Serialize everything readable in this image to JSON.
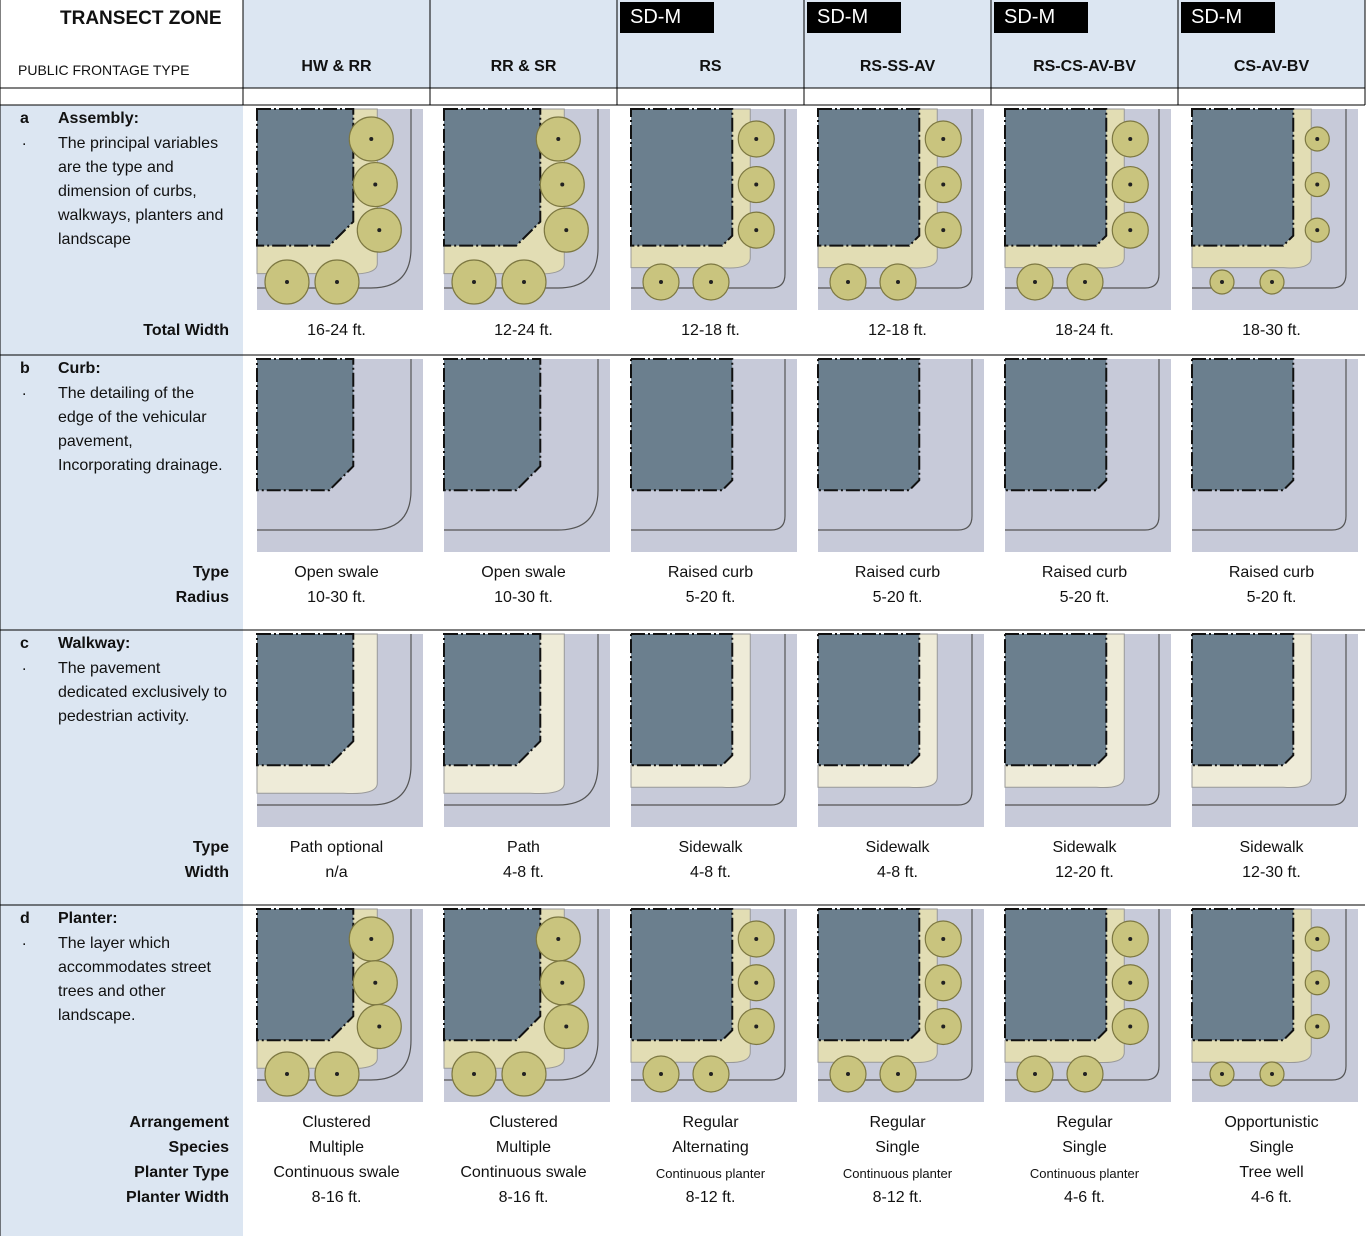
{
  "header": {
    "transect_zone": "TRANSECT ZONE",
    "frontage_type": "PUBLIC FRONTAGE TYPE",
    "columns": [
      {
        "type": "HW & RR"
      },
      {
        "type": "RR & SR"
      },
      {
        "zone": "SD-M",
        "type": "RS"
      },
      {
        "zone": "SD-M",
        "type": "RS-SS-AV"
      },
      {
        "zone": "SD-M",
        "type": "RS-CS-AV-BV"
      },
      {
        "zone": "SD-M",
        "type": "CS-AV-BV"
      }
    ]
  },
  "sections": [
    {
      "letter": "a",
      "marker": ".",
      "title": "Assembly:",
      "description": "The principal variables are the type and dimension of curbs, walkways, planters and landscape",
      "labels": [
        "Total Width"
      ],
      "columns": [
        [
          "16-24 ft."
        ],
        [
          "12-24 ft."
        ],
        [
          "12-18 ft."
        ],
        [
          "12-18 ft."
        ],
        [
          "18-24 ft."
        ],
        [
          "18-30 ft."
        ]
      ]
    },
    {
      "letter": "b",
      "marker": ".",
      "title": "Curb:",
      "description": "The detailing of the edge of the vehicular pavement, Incorporating drainage.",
      "labels": [
        "Type",
        "Radius"
      ],
      "columns": [
        [
          "Open swale",
          "10-30 ft."
        ],
        [
          "Open swale",
          "10-30 ft."
        ],
        [
          "Raised curb",
          "5-20 ft."
        ],
        [
          "Raised curb",
          "5-20 ft."
        ],
        [
          "Raised curb",
          "5-20 ft."
        ],
        [
          "Raised curb",
          "5-20 ft."
        ]
      ]
    },
    {
      "letter": "c",
      "marker": ".",
      "title": "Walkway:",
      "description": "The pavement dedicated exclusively to pedestrian activity.",
      "labels": [
        "Type",
        "Width"
      ],
      "columns": [
        [
          "Path optional",
          "n/a"
        ],
        [
          "Path",
          "4-8 ft."
        ],
        [
          "Sidewalk",
          "4-8 ft."
        ],
        [
          "Sidewalk",
          "4-8 ft."
        ],
        [
          "Sidewalk",
          "12-20 ft."
        ],
        [
          "Sidewalk",
          "12-30 ft."
        ]
      ]
    },
    {
      "letter": "d",
      "marker": ".",
      "title": "Planter:",
      "description": "The layer which accommodates street trees and other landscape.",
      "labels": [
        "Arrangement",
        "Species",
        "Planter Type",
        "Planter Width"
      ],
      "columns": [
        [
          "Clustered",
          "Multiple",
          "Continuous swale",
          "8-16 ft."
        ],
        [
          "Clustered",
          "Multiple",
          "Continuous swale",
          "8-16 ft."
        ],
        [
          "Regular",
          "Alternating",
          "Continuous planter",
          "8-12 ft."
        ],
        [
          "Regular",
          "Single",
          "Continuous planter",
          "8-12 ft."
        ],
        [
          "Regular",
          "Single",
          "Continuous planter",
          "4-6 ft."
        ],
        [
          "Opportunistic",
          "Single",
          "Tree well",
          "4-6 ft."
        ]
      ]
    }
  ]
}
